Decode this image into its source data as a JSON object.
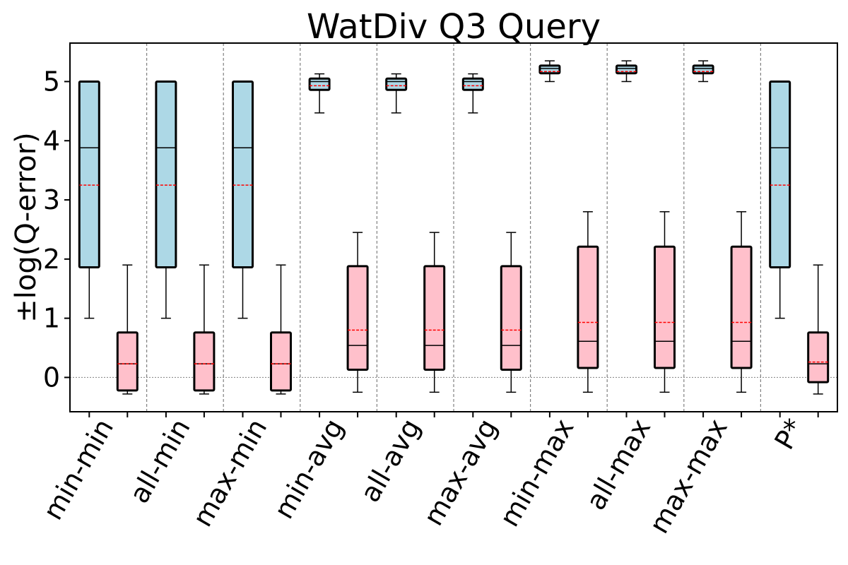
{
  "chart_data": {
    "type": "box",
    "title": "WatDiv Q3 Query",
    "ylabel": "±log(Q-error)",
    "xlabel": "",
    "ylim": [
      -0.58,
      5.65
    ],
    "yticks": [
      0,
      1,
      2,
      3,
      4,
      5
    ],
    "grid": false,
    "legend": "none",
    "colors": {
      "series_1": "#add8e6",
      "series_2": "#ffc0cb",
      "mean_line": "#ff0000",
      "group_separator": "#808080",
      "zero_line": "#808080"
    },
    "categories": [
      "min-min",
      "all-min",
      "max-min",
      "min-avg",
      "all-avg",
      "max-avg",
      "min-max",
      "all-max",
      "max-max",
      "P*"
    ],
    "series": [
      {
        "color": "#add8e6",
        "boxes": [
          {
            "whislo": 1.0,
            "q1": 1.86,
            "med": 3.88,
            "mean": 3.25,
            "q3": 5.0,
            "whishi": 5.0
          },
          {
            "whislo": 1.0,
            "q1": 1.86,
            "med": 3.88,
            "mean": 3.25,
            "q3": 5.0,
            "whishi": 5.0
          },
          {
            "whislo": 1.0,
            "q1": 1.86,
            "med": 3.88,
            "mean": 3.25,
            "q3": 5.0,
            "whishi": 5.0
          },
          {
            "whislo": 4.47,
            "q1": 4.86,
            "med": 5.0,
            "mean": 4.93,
            "q3": 5.05,
            "whishi": 5.13
          },
          {
            "whislo": 4.47,
            "q1": 4.86,
            "med": 5.0,
            "mean": 4.93,
            "q3": 5.05,
            "whishi": 5.13
          },
          {
            "whislo": 4.47,
            "q1": 4.86,
            "med": 5.0,
            "mean": 4.93,
            "q3": 5.05,
            "whishi": 5.13
          },
          {
            "whislo": 5.0,
            "q1": 5.14,
            "med": 5.22,
            "mean": 5.17,
            "q3": 5.27,
            "whishi": 5.35
          },
          {
            "whislo": 5.0,
            "q1": 5.14,
            "med": 5.22,
            "mean": 5.17,
            "q3": 5.27,
            "whishi": 5.35
          },
          {
            "whislo": 5.0,
            "q1": 5.14,
            "med": 5.22,
            "mean": 5.17,
            "q3": 5.27,
            "whishi": 5.35
          },
          {
            "whislo": 1.0,
            "q1": 1.86,
            "med": 3.88,
            "mean": 3.25,
            "q3": 5.0,
            "whishi": 5.0
          }
        ]
      },
      {
        "color": "#ffc0cb",
        "boxes": [
          {
            "whislo": -0.28,
            "q1": -0.22,
            "med": 0.23,
            "mean": 0.23,
            "q3": 0.76,
            "whishi": 1.9
          },
          {
            "whislo": -0.28,
            "q1": -0.22,
            "med": 0.23,
            "mean": 0.23,
            "q3": 0.76,
            "whishi": 1.9
          },
          {
            "whislo": -0.28,
            "q1": -0.22,
            "med": 0.23,
            "mean": 0.23,
            "q3": 0.76,
            "whishi": 1.9
          },
          {
            "whislo": -0.25,
            "q1": 0.13,
            "med": 0.54,
            "mean": 0.8,
            "q3": 1.88,
            "whishi": 2.45
          },
          {
            "whislo": -0.25,
            "q1": 0.13,
            "med": 0.54,
            "mean": 0.8,
            "q3": 1.88,
            "whishi": 2.45
          },
          {
            "whislo": -0.25,
            "q1": 0.13,
            "med": 0.54,
            "mean": 0.8,
            "q3": 1.88,
            "whishi": 2.45
          },
          {
            "whislo": -0.25,
            "q1": 0.16,
            "med": 0.61,
            "mean": 0.93,
            "q3": 2.21,
            "whishi": 2.8
          },
          {
            "whislo": -0.25,
            "q1": 0.16,
            "med": 0.61,
            "mean": 0.93,
            "q3": 2.21,
            "whishi": 2.8
          },
          {
            "whislo": -0.25,
            "q1": 0.16,
            "med": 0.61,
            "mean": 0.93,
            "q3": 2.21,
            "whishi": 2.8
          },
          {
            "whislo": -0.28,
            "q1": -0.08,
            "med": 0.23,
            "mean": 0.26,
            "q3": 0.76,
            "whishi": 1.9
          }
        ]
      }
    ]
  }
}
